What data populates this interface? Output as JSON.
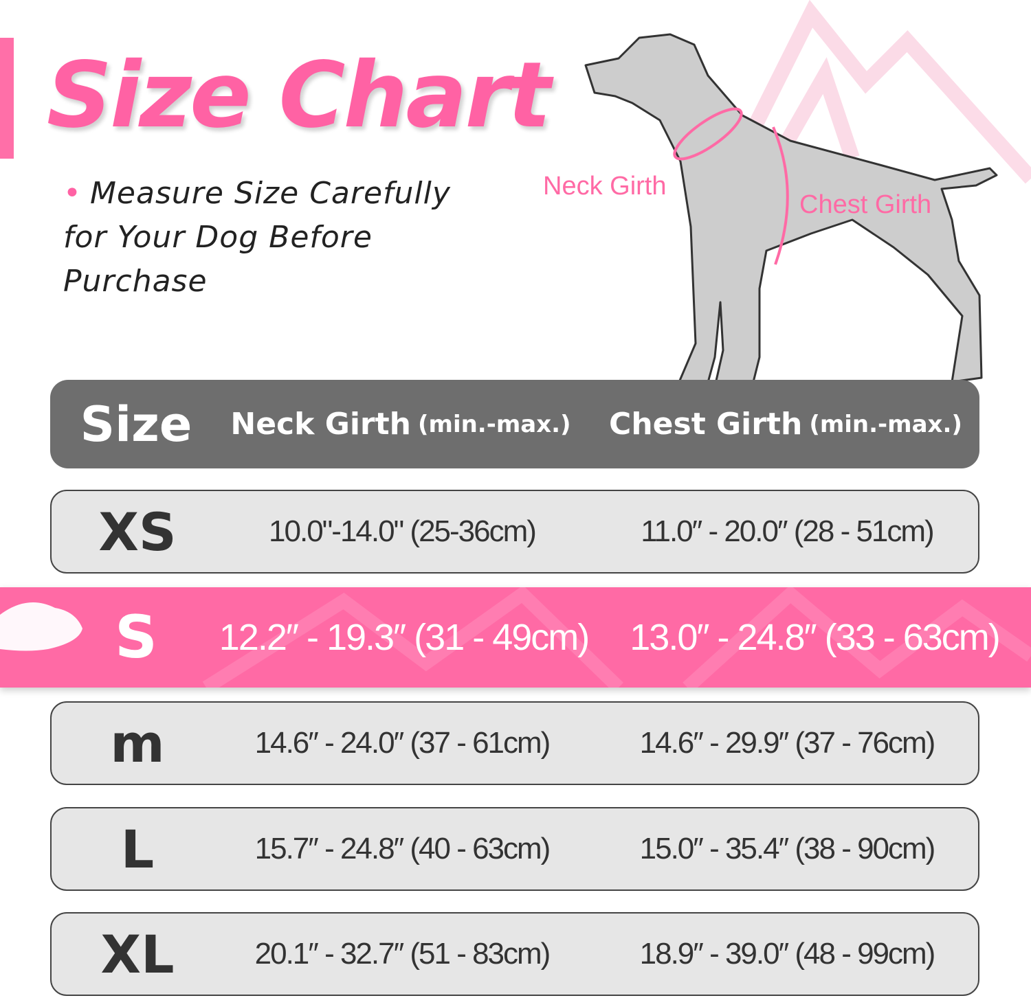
{
  "title": "Size Chart",
  "note": "Measure Size Carefully for Your Dog Before Purchase",
  "diagram": {
    "neck_label": "Neck Girth",
    "chest_label": "Chest Girth"
  },
  "colors": {
    "accent": "#ff62a4",
    "header_bg": "#6e6e6e",
    "row_bg": "#e6e6e6",
    "highlight_bg": "#ff6aa5"
  },
  "table": {
    "headers": {
      "size": "Size",
      "neck": "Neck Girth",
      "neck_note": "(min.-max.)",
      "chest": "Chest Girth",
      "chest_note": "(min.-max.)"
    },
    "rows": [
      {
        "size": "XS",
        "neck": "10.0\"-14.0\" (25-36cm)",
        "chest": "11.0″ - 20.0″ (28 - 51cm)"
      },
      {
        "size": "S",
        "neck": "12.2″ - 19.3″ (31 - 49cm)",
        "chest": "13.0″ - 24.8″ (33 - 63cm)",
        "highlighted": true
      },
      {
        "size": "M",
        "neck": "14.6″ - 24.0″ (37 - 61cm)",
        "chest": "14.6″ - 29.9″ (37 - 76cm)"
      },
      {
        "size": "L",
        "neck": "15.7″ - 24.8″ (40 - 63cm)",
        "chest": "15.0″ - 35.4″ (38 - 90cm)"
      },
      {
        "size": "XL",
        "neck": "20.1″ - 32.7″ (51 - 83cm)",
        "chest": "18.9″ - 39.0″ (48 - 99cm)"
      }
    ]
  }
}
